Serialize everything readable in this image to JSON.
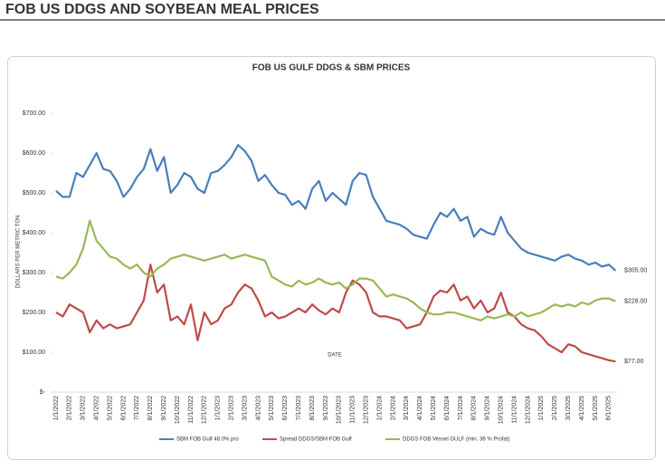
{
  "header": {
    "title": "FOB US DDGS AND SOYBEAN MEAL PRICES"
  },
  "chart_data": {
    "type": "line",
    "title": "FOB US GULF DDGS & SBM PRICES",
    "y_label": "DOLLARS PER METRIC TON",
    "x_label": "DATE",
    "categories": [
      "1/1/2022",
      null,
      "2/1/2022",
      null,
      "3/1/2022",
      null,
      "4/1/2022",
      null,
      "5/1/2022",
      null,
      "6/1/2022",
      null,
      "7/1/2022",
      null,
      "8/1/2022",
      null,
      "9/1/2022",
      null,
      "10/1/2022",
      null,
      "11/1/2022",
      null,
      "12/1/2022",
      null,
      "1/1/2023",
      null,
      "2/1/2023",
      null,
      "3/1/2023",
      null,
      "4/1/2023",
      null,
      "5/1/2023",
      null,
      "6/1/2023",
      null,
      "7/1/2023",
      null,
      "8/1/2023",
      null,
      "9/1/2023",
      null,
      "10/1/2023",
      null,
      "11/1/2023",
      null,
      "12/1/2023",
      null,
      "1/1/2024",
      null,
      "2/1/2024",
      null,
      "3/1/2024",
      null,
      "4/1/2024",
      null,
      "5/1/2024",
      null,
      "6/1/2024",
      null,
      "7/1/2024",
      null,
      "8/1/2024",
      null,
      "9/1/2024",
      null,
      "10/1/2024",
      null,
      "11/1/2024",
      null,
      "12/1/2024",
      null,
      "1/1/2025",
      null,
      "2/1/2025",
      null,
      "3/1/2025",
      null,
      "4/1/2025",
      null,
      "5/1/2025",
      null,
      "6/1/2025",
      null
    ],
    "series": [
      {
        "name": "SBM FOB Gulf 48.0% pro",
        "color": "#4a7ebb",
        "end_label": "$305.00",
        "values": [
          505,
          490,
          490,
          550,
          540,
          570,
          600,
          560,
          555,
          530,
          490,
          510,
          540,
          560,
          610,
          555,
          590,
          500,
          520,
          550,
          540,
          510,
          500,
          550,
          555,
          570,
          590,
          620,
          605,
          580,
          530,
          545,
          520,
          500,
          495,
          470,
          480,
          460,
          510,
          530,
          480,
          500,
          485,
          470,
          530,
          550,
          545,
          490,
          460,
          430,
          425,
          420,
          410,
          395,
          390,
          385,
          420,
          450,
          440,
          460,
          430,
          440,
          390,
          410,
          400,
          395,
          440,
          400,
          380,
          360,
          350,
          345,
          340,
          335,
          330,
          340,
          345,
          335,
          330,
          320,
          325,
          315,
          320,
          305
        ]
      },
      {
        "name": "Spread DDGS/SBM FOB Gulf",
        "color": "#be4b48",
        "end_label": "$77.00",
        "values": [
          200,
          190,
          220,
          210,
          200,
          150,
          180,
          160,
          170,
          160,
          165,
          170,
          200,
          230,
          320,
          250,
          270,
          180,
          190,
          170,
          220,
          130,
          200,
          170,
          180,
          210,
          220,
          250,
          270,
          260,
          230,
          190,
          200,
          185,
          190,
          200,
          210,
          200,
          220,
          205,
          195,
          210,
          200,
          250,
          280,
          270,
          250,
          200,
          190,
          190,
          185,
          180,
          160,
          165,
          170,
          200,
          240,
          255,
          250,
          270,
          230,
          240,
          210,
          230,
          200,
          210,
          250,
          200,
          190,
          170,
          160,
          155,
          140,
          120,
          110,
          100,
          120,
          115,
          100,
          95,
          90,
          85,
          80,
          77
        ]
      },
      {
        "name": "DDGS FOB Vessel GULF  (min. 36 % Profat)",
        "color": "#98b954",
        "end_label": "$228.00",
        "values": [
          290,
          285,
          300,
          320,
          360,
          430,
          380,
          360,
          340,
          335,
          320,
          310,
          320,
          300,
          290,
          310,
          320,
          335,
          340,
          345,
          340,
          335,
          330,
          335,
          340,
          345,
          335,
          340,
          345,
          340,
          335,
          330,
          290,
          280,
          270,
          265,
          280,
          270,
          275,
          285,
          275,
          270,
          275,
          260,
          270,
          285,
          285,
          280,
          260,
          240,
          245,
          240,
          235,
          225,
          210,
          200,
          195,
          195,
          200,
          200,
          195,
          190,
          185,
          180,
          190,
          185,
          190,
          195,
          190,
          200,
          190,
          195,
          200,
          210,
          220,
          215,
          220,
          215,
          225,
          220,
          230,
          235,
          235,
          228
        ]
      }
    ],
    "ylim": [
      0,
      700
    ],
    "yticks": [
      {
        "value": 0,
        "label": "$-"
      },
      {
        "value": 100,
        "label": "$100.00"
      },
      {
        "value": 200,
        "label": "$200.00"
      },
      {
        "value": 300,
        "label": "$300.00"
      },
      {
        "value": 400,
        "label": "$400.00"
      },
      {
        "value": 500,
        "label": "$500.00"
      },
      {
        "value": 600,
        "label": "$600.00"
      },
      {
        "value": 700,
        "label": "$700.00"
      }
    ],
    "grid": false,
    "legend": "bottom"
  }
}
